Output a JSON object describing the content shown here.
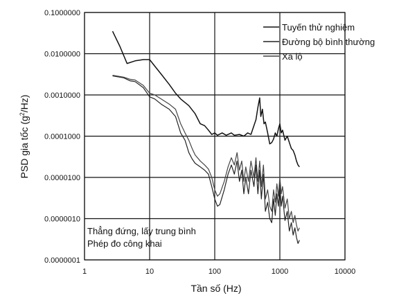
{
  "chart_data": {
    "type": "line",
    "xscale": "log",
    "yscale": "log",
    "xlabel": "Tần số (Hz)",
    "ylabel_prefix": "PSD gia tốc (g",
    "ylabel_sup": "2",
    "ylabel_suffix": "/Hz)",
    "xlim": [
      1,
      10000
    ],
    "ylim": [
      1e-07,
      0.1
    ],
    "grid": true,
    "legend_position": "top-right",
    "x_tick_labels": [
      "1",
      "10",
      "100",
      "1000",
      "10000"
    ],
    "y_tick_labels": [
      "0.1000000",
      "0.0100000",
      "0.0010000",
      "0.0001000",
      "0.0000100",
      "0.0000010",
      "0.0000001"
    ],
    "annotations": [
      "Thẳng đứng, lấy trung bình",
      "Phép đo công khai"
    ],
    "series": [
      {
        "name": "Tuyến thử nghiệm",
        "color": "#111111",
        "points": [
          [
            2.7,
            0.035
          ],
          [
            3.5,
            0.015
          ],
          [
            4.5,
            0.0058
          ],
          [
            6,
            0.0067
          ],
          [
            8,
            0.0072
          ],
          [
            10,
            0.0072
          ],
          [
            12,
            0.005
          ],
          [
            15,
            0.0032
          ],
          [
            20,
            0.0018
          ],
          [
            25,
            0.0011
          ],
          [
            30,
            0.0008
          ],
          [
            40,
            0.00055
          ],
          [
            50,
            0.00035
          ],
          [
            60,
            0.0002
          ],
          [
            70,
            0.00018
          ],
          [
            80,
            0.00014
          ],
          [
            90,
            0.00011
          ],
          [
            100,
            0.00012
          ],
          [
            110,
            0.000105
          ],
          [
            130,
            0.00012
          ],
          [
            150,
            0.000105
          ],
          [
            180,
            0.00012
          ],
          [
            200,
            0.000105
          ],
          [
            240,
            0.00011
          ],
          [
            280,
            0.0001
          ],
          [
            320,
            0.00012
          ],
          [
            360,
            0.00011
          ],
          [
            400,
            0.00018
          ],
          [
            430,
            0.00025
          ],
          [
            460,
            0.0005
          ],
          [
            490,
            0.00085
          ],
          [
            510,
            0.0003
          ],
          [
            540,
            0.00045
          ],
          [
            570,
            0.0002
          ],
          [
            600,
            0.00022
          ],
          [
            650,
            0.00012
          ],
          [
            700,
            6.5e-05
          ],
          [
            750,
            7e-05
          ],
          [
            800,
            8.5e-05
          ],
          [
            850,
            0.00012
          ],
          [
            900,
            0.0001
          ],
          [
            950,
            0.00015
          ],
          [
            1000,
            0.0002
          ],
          [
            1050,
            0.00012
          ],
          [
            1100,
            0.00014
          ],
          [
            1200,
            8e-05
          ],
          [
            1300,
            0.0001
          ],
          [
            1400,
            7e-05
          ],
          [
            1500,
            5e-05
          ],
          [
            1600,
            4.5e-05
          ],
          [
            1700,
            3.5e-05
          ],
          [
            1800,
            2.5e-05
          ],
          [
            1900,
            2e-05
          ],
          [
            2000,
            1.8e-05
          ]
        ]
      },
      {
        "name": "Đường bộ bình thường",
        "color": "#222222",
        "points": [
          [
            2.7,
            0.0029
          ],
          [
            4,
            0.0026
          ],
          [
            5,
            0.0022
          ],
          [
            6,
            0.0021
          ],
          [
            8,
            0.0015
          ],
          [
            10,
            0.0009
          ],
          [
            12,
            0.0008
          ],
          [
            15,
            0.0006
          ],
          [
            20,
            0.00045
          ],
          [
            25,
            0.0003
          ],
          [
            30,
            0.00012
          ],
          [
            35,
            8e-05
          ],
          [
            40,
            4e-05
          ],
          [
            45,
            2.8e-05
          ],
          [
            50,
            2.2e-05
          ],
          [
            60,
            1.8e-05
          ],
          [
            70,
            1.5e-05
          ],
          [
            80,
            1.2e-05
          ],
          [
            90,
            6e-06
          ],
          [
            100,
            3e-06
          ],
          [
            110,
            2e-06
          ],
          [
            120,
            2.2e-06
          ],
          [
            140,
            5e-06
          ],
          [
            160,
            1.2e-05
          ],
          [
            180,
            2e-05
          ],
          [
            200,
            1.2e-05
          ],
          [
            220,
            2.5e-05
          ],
          [
            240,
            8e-06
          ],
          [
            260,
            1.5e-05
          ],
          [
            280,
            4e-06
          ],
          [
            300,
            1e-05
          ],
          [
            330,
            4e-06
          ],
          [
            360,
            1.5e-05
          ],
          [
            400,
            6e-06
          ],
          [
            430,
            2e-05
          ],
          [
            460,
            4e-06
          ],
          [
            490,
            1.5e-05
          ],
          [
            520,
            3e-06
          ],
          [
            560,
            1.2e-05
          ],
          [
            600,
            1.5e-06
          ],
          [
            650,
            2.5e-06
          ],
          [
            700,
            1e-06
          ],
          [
            750,
            8e-07
          ],
          [
            800,
            3e-06
          ],
          [
            850,
            1.2e-06
          ],
          [
            900,
            4e-06
          ],
          [
            950,
            2e-06
          ],
          [
            1000,
            6e-06
          ],
          [
            1050,
            2e-06
          ],
          [
            1100,
            3.5e-06
          ],
          [
            1200,
            9e-07
          ],
          [
            1300,
            1.5e-06
          ],
          [
            1400,
            5e-07
          ],
          [
            1500,
            8e-07
          ],
          [
            1600,
            4e-07
          ],
          [
            1700,
            6e-07
          ],
          [
            1800,
            3.5e-07
          ],
          [
            1900,
            2.5e-07
          ],
          [
            2000,
            3e-07
          ]
        ]
      },
      {
        "name": "Xa lộ",
        "color": "#444444",
        "points": [
          [
            2.7,
            0.003
          ],
          [
            4,
            0.0027
          ],
          [
            5,
            0.0024
          ],
          [
            6,
            0.0023
          ],
          [
            8,
            0.0017
          ],
          [
            10,
            0.0011
          ],
          [
            12,
            0.001
          ],
          [
            15,
            0.0008
          ],
          [
            20,
            0.0006
          ],
          [
            25,
            0.00045
          ],
          [
            30,
            0.0002
          ],
          [
            35,
            0.00012
          ],
          [
            40,
            8e-05
          ],
          [
            45,
            5e-05
          ],
          [
            50,
            3.5e-05
          ],
          [
            60,
            2.5e-05
          ],
          [
            70,
            2e-05
          ],
          [
            80,
            1.6e-05
          ],
          [
            90,
            1e-05
          ],
          [
            100,
            5e-06
          ],
          [
            110,
            3.5e-06
          ],
          [
            120,
            4e-06
          ],
          [
            140,
            8e-06
          ],
          [
            160,
            1.8e-05
          ],
          [
            180,
            3e-05
          ],
          [
            200,
            2e-05
          ],
          [
            220,
            4e-05
          ],
          [
            240,
            1.5e-05
          ],
          [
            260,
            2.5e-05
          ],
          [
            280,
            8e-06
          ],
          [
            300,
            1.8e-05
          ],
          [
            330,
            8e-06
          ],
          [
            360,
            2.5e-05
          ],
          [
            400,
            1e-05
          ],
          [
            430,
            3e-05
          ],
          [
            460,
            8e-06
          ],
          [
            490,
            2.5e-05
          ],
          [
            520,
            6e-06
          ],
          [
            560,
            2e-05
          ],
          [
            600,
            3e-06
          ],
          [
            650,
            5e-06
          ],
          [
            700,
            2e-06
          ],
          [
            750,
            1.5e-06
          ],
          [
            800,
            5e-06
          ],
          [
            850,
            2.5e-06
          ],
          [
            900,
            7e-06
          ],
          [
            950,
            3.5e-06
          ],
          [
            1000,
            1e-05
          ],
          [
            1050,
            4e-06
          ],
          [
            1100,
            6e-06
          ],
          [
            1200,
            1.8e-06
          ],
          [
            1300,
            3e-06
          ],
          [
            1400,
            1e-06
          ],
          [
            1500,
            1.5e-06
          ],
          [
            1600,
            8e-07
          ],
          [
            1700,
            1.2e-06
          ],
          [
            1800,
            7e-07
          ],
          [
            1900,
            5e-07
          ],
          [
            2000,
            6e-07
          ]
        ]
      }
    ]
  }
}
